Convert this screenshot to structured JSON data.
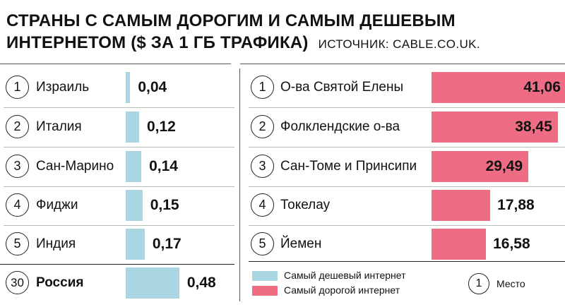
{
  "header": {
    "title_line1": "СТРАНЫ С САМЫМ ДОРОГИМ И САМЫМ ДЕШЕВЫМ",
    "title_line2": "ИНТЕРНЕТОМ ($ ЗА 1 ГБ ТРАФИКА)",
    "source": "ИСТОЧНИК: CABLE.CO.UK."
  },
  "legend": {
    "cheap_label": "Самый дешевый интернет",
    "expensive_label": "Самый дорогой интернет",
    "place_number": "1",
    "place_label": "Место"
  },
  "colors": {
    "cheap": "#a9d6e0",
    "expensive": "#ee6c84"
  },
  "chart_data": [
    {
      "type": "bar",
      "orientation": "horizontal",
      "series_name": "Самый дешевый интернет",
      "ranks": [
        "1",
        "2",
        "3",
        "4",
        "5",
        "30"
      ],
      "categories": [
        "Израиль",
        "Италия",
        "Сан-Марино",
        "Фиджи",
        "Индия",
        "Россия"
      ],
      "values": [
        0.04,
        0.12,
        0.14,
        0.15,
        0.17,
        0.48
      ],
      "value_labels": [
        "0,04",
        "0,12",
        "0,14",
        "0,15",
        "0,17",
        "0,48"
      ],
      "highlight": "Россия"
    },
    {
      "type": "bar",
      "orientation": "horizontal",
      "series_name": "Самый дорогой интернет",
      "ranks": [
        "1",
        "2",
        "3",
        "4",
        "5"
      ],
      "categories": [
        "О-ва Святой Елены",
        "Фолклендские о-ва",
        "Сан-Томе и Принсипи",
        "Токелау",
        "Йемен"
      ],
      "values": [
        41.06,
        38.45,
        29.49,
        17.88,
        16.58
      ],
      "value_labels": [
        "41,06",
        "38,45",
        "29,49",
        "17,88",
        "16,58"
      ]
    }
  ]
}
